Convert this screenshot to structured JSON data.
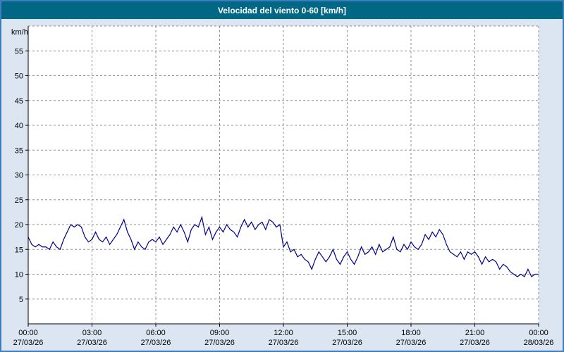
{
  "title": "Velocidad del viento 0-60 [km/h]",
  "colors": {
    "title_bar_bg": "#006884",
    "title_text": "#ffffff",
    "page_bg": "#dce6f2",
    "outer_border": "#3d7ec0",
    "plot_bg": "#ffffff",
    "grid": "#8f8f9a",
    "axis": "#000000",
    "line": "#00008b"
  },
  "chart_data": {
    "type": "line",
    "title": "Velocidad del viento 0-60 [km/h]",
    "xlabel": "",
    "ylabel": "km/h",
    "ylim": [
      0,
      60
    ],
    "ytick_step": 5,
    "ytick_labels": [
      "5",
      "10",
      "15",
      "20",
      "25",
      "30",
      "35",
      "40",
      "45",
      "50",
      "55"
    ],
    "xtick_labels": [
      "00:00",
      "03:00",
      "06:00",
      "09:00",
      "12:00",
      "15:00",
      "18:00",
      "21:00",
      "00:00"
    ],
    "xtick_dates": [
      "27/03/26",
      "27/03/26",
      "27/03/26",
      "27/03/26",
      "27/03/26",
      "27/03/26",
      "27/03/26",
      "27/03/26",
      "28/03/26"
    ],
    "grid": "dashed",
    "legend": "none",
    "sample_interval_minutes": 10,
    "series_name": "Velocidad del viento",
    "values": [
      17.5,
      16,
      15.5,
      16,
      15.5,
      15.5,
      15,
      16.5,
      15.5,
      15,
      17,
      18.5,
      20,
      19.5,
      20,
      19.5,
      17.5,
      16.5,
      17,
      18.5,
      17,
      16.5,
      17.5,
      16,
      17,
      18,
      19.5,
      21,
      18.5,
      17,
      15,
      16.5,
      15.5,
      15,
      16.5,
      17,
      16.5,
      17.5,
      16,
      17,
      18,
      19.5,
      18.5,
      20,
      18.5,
      16.5,
      19,
      20,
      19.5,
      21.5,
      18,
      19.5,
      17,
      18.5,
      19.5,
      18.5,
      20,
      19,
      18.5,
      17.5,
      19.5,
      21,
      19.5,
      20.5,
      19,
      20,
      20.5,
      19,
      21,
      20.5,
      19.5,
      20,
      15.5,
      16.5,
      14.5,
      15,
      13.5,
      14,
      13,
      12.5,
      11,
      13,
      14.5,
      13.5,
      12.5,
      13.5,
      15,
      13,
      12,
      13.5,
      14.5,
      13,
      12,
      13.5,
      15.5,
      14,
      14.5,
      15.5,
      14,
      16,
      14.5,
      15,
      15.5,
      17.5,
      15,
      14.5,
      16,
      15,
      16.5,
      15.5,
      15,
      16,
      18,
      17,
      18.5,
      17.5,
      19,
      18,
      16,
      14.5,
      14,
      13.5,
      14.5,
      13,
      14.5,
      14,
      14.5,
      13.5,
      12,
      13.5,
      12.5,
      13,
      12.5,
      11,
      12,
      11.5,
      10.5,
      10,
      9.5,
      10,
      9.5,
      11,
      9.5,
      10,
      10
    ]
  }
}
